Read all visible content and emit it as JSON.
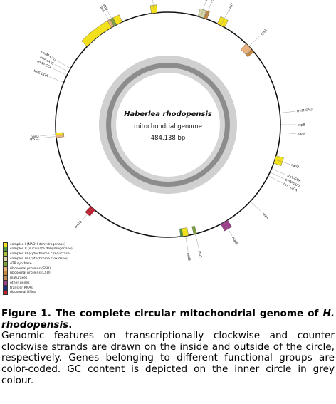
{
  "genome": {
    "name": "Haberlea rhodopensis",
    "type": "mitochondrial genome",
    "length_label": "484,138 bp",
    "length_bp": 484138
  },
  "categories": [
    {
      "id": "nad",
      "label": "complex I (NADH dehydrogenase)",
      "color": "#f2e01c"
    },
    {
      "id": "sdh",
      "label": "complex II (succinate dehydrogenase)",
      "color": "#4f9a3c"
    },
    {
      "id": "cob",
      "label": "complex III (cytochrome c reductase)",
      "color": "#a7c33a"
    },
    {
      "id": "cox",
      "label": "complex IV (cytochrome c oxidase)",
      "color": "#d8d8a8"
    },
    {
      "id": "atp",
      "label": "ATP synthase",
      "color": "#7ba33a"
    },
    {
      "id": "rps",
      "label": "ribosomal proteins (SSU)",
      "color": "#e7b07c"
    },
    {
      "id": "rpl",
      "label": "ribosomal proteins (LSU)",
      "color": "#c8883c"
    },
    {
      "id": "mat",
      "label": "maturases",
      "color": "#c18a5a"
    },
    {
      "id": "oth",
      "label": "other genes",
      "color": "#9d3f8a"
    },
    {
      "id": "trn",
      "label": "transfer RNAs",
      "color": "#1c2d7c"
    },
    {
      "id": "rrn",
      "label": "ribosomal RNAs",
      "color": "#c02231"
    }
  ],
  "genes": [
    {
      "name": "nad7",
      "angle": -35,
      "span": 22,
      "side": "out",
      "cat": "nad"
    },
    {
      "name": "nad4",
      "angle": -7,
      "span": 3,
      "side": "out",
      "cat": "nad"
    },
    {
      "name": "atp9",
      "angle": -28,
      "span": 1.5,
      "side": "out",
      "cat": "atp"
    },
    {
      "name": "rps4",
      "angle": -29.5,
      "span": 1.5,
      "side": "out",
      "cat": "rps"
    },
    {
      "name": "cox3",
      "angle": 17,
      "span": 3,
      "side": "out",
      "cat": "cox"
    },
    {
      "name": "rpl5",
      "angle": 19.5,
      "span": 1.5,
      "side": "out",
      "cat": "rpl"
    },
    {
      "name": "nad1",
      "angle": 28,
      "span": 4,
      "side": "out",
      "cat": "nad"
    },
    {
      "name": "rps3",
      "angle": 46,
      "span": 4,
      "side": "in",
      "cat": "rps"
    },
    {
      "name": "rpl16",
      "angle": 49,
      "span": 1.5,
      "side": "in",
      "cat": "rpl"
    },
    {
      "name": "nad2",
      "angle": 108,
      "span": 4,
      "side": "out",
      "cat": "nad"
    },
    {
      "name": "matR",
      "angle": 150,
      "span": 4,
      "side": "out",
      "cat": "oth"
    },
    {
      "name": "atp1",
      "angle": 166,
      "span": 1.5,
      "side": "in",
      "cat": "atp"
    },
    {
      "name": "nad5",
      "angle": 171,
      "span": 3,
      "side": "in",
      "cat": "nad"
    },
    {
      "name": "sdh4",
      "angle": 173,
      "span": 1.2,
      "side": "in",
      "cat": "sdh"
    },
    {
      "name": "rrn18",
      "angle": 222,
      "span": 3,
      "side": "out",
      "cat": "rrn"
    },
    {
      "name": "nad3",
      "angle": 265,
      "span": 1.5,
      "side": "in",
      "cat": "nad"
    },
    {
      "name": "rps12",
      "angle": 264,
      "span": 1.2,
      "side": "in",
      "cat": "rps"
    }
  ],
  "text_labels": [
    {
      "text": "nad4",
      "angle": -7
    },
    {
      "text": "atp9",
      "angle": -28
    },
    {
      "text": "rps4",
      "angle": -29.5
    },
    {
      "text": "cox3",
      "angle": 17
    },
    {
      "text": "rpl5",
      "angle": 19.5
    },
    {
      "text": "nad1",
      "angle": 28
    },
    {
      "text": "rps3",
      "angle": 46
    },
    {
      "text": "trnM-CAU",
      "angle": 84
    },
    {
      "text": "atp8",
      "angle": 90
    },
    {
      "text": "nad6",
      "angle": 94
    },
    {
      "text": "nad2",
      "angle": 108
    },
    {
      "text": "trnY-GUA",
      "angle": 113
    },
    {
      "text": "trnN-GUU",
      "angle": 115
    },
    {
      "text": "trnC-GCA",
      "angle": 117
    },
    {
      "text": "atp4",
      "angle": 133
    },
    {
      "text": "matR",
      "angle": 150
    },
    {
      "text": "atp1",
      "angle": 166
    },
    {
      "text": "nad5",
      "angle": 171
    },
    {
      "text": "rrn18",
      "angle": 222
    },
    {
      "text": "nad3",
      "angle": 265
    },
    {
      "text": "rps12",
      "angle": 264
    },
    {
      "text": "trnS-UGA",
      "angle": 292
    },
    {
      "text": "trnW-CCA",
      "angle": 296
    },
    {
      "text": "trnP-UGG",
      "angle": 298
    },
    {
      "text": "trnfM-CAU",
      "angle": 300
    }
  ],
  "caption": {
    "head": "Figure 1. The complete circular mitochondrial genome of ",
    "species": "H. rhodopensis",
    "head_end": ".",
    "body": "Genomic features on transcriptionally clockwise and counter clockwise strands are drawn on the inside and outside of the circle, respectively. Genes belonging to different functional groups are color-coded. GC content is depicted on the inner circle in grey colour."
  }
}
